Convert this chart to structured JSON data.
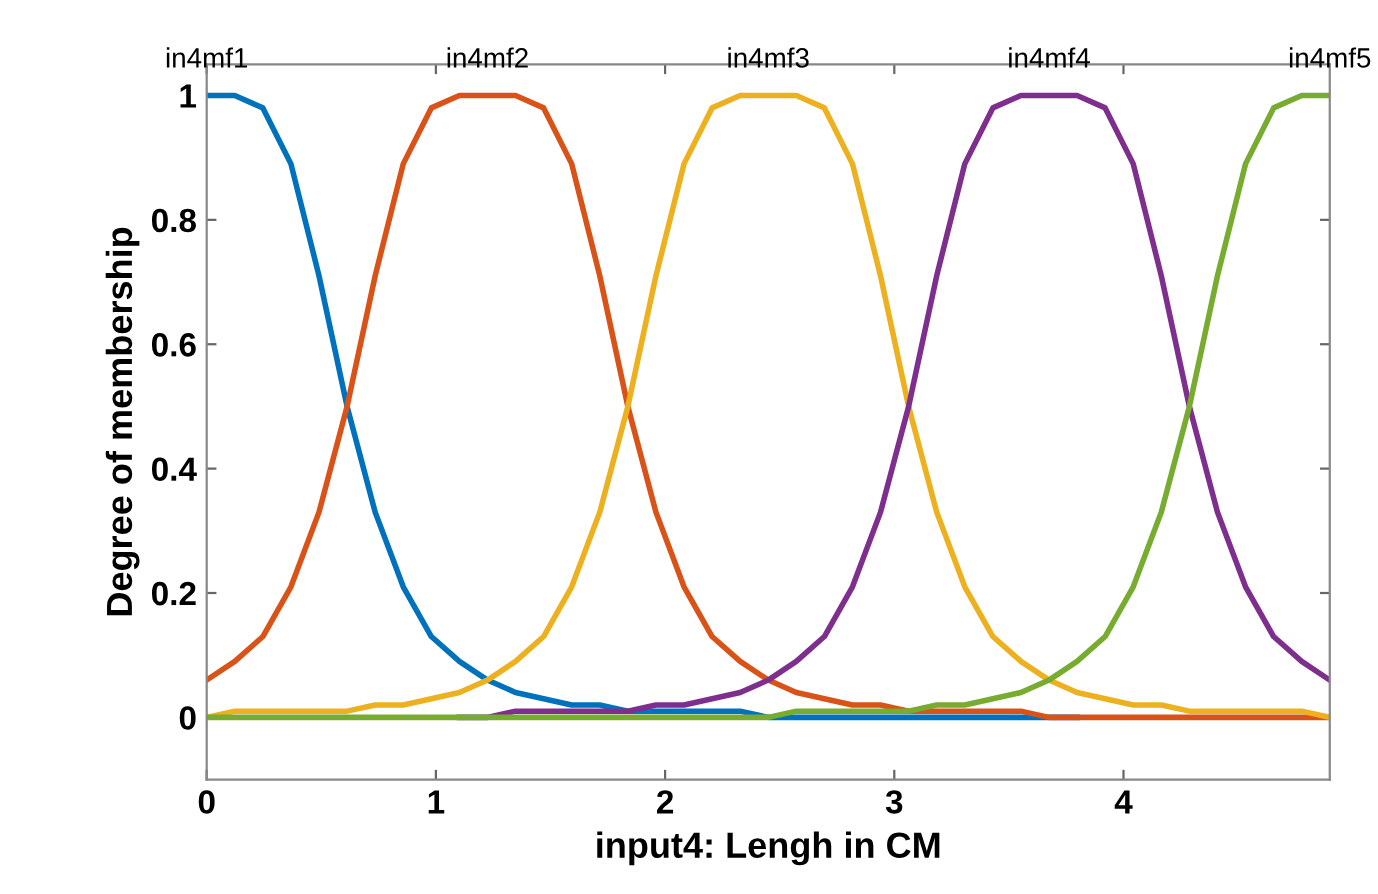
{
  "chart_data": {
    "type": "line",
    "xlabel": "input4: Lengh in CM",
    "ylabel": "Degree of membership",
    "x": [
      0,
      0.1225,
      0.245,
      0.3675,
      0.49,
      0.6125,
      0.735,
      0.8575,
      0.98,
      1.1025,
      1.225,
      1.3475,
      1.47,
      1.5925,
      1.715,
      1.8375,
      1.96,
      2.0825,
      2.205,
      2.3275,
      2.45,
      2.5725,
      2.695,
      2.8175,
      2.94,
      3.0625,
      3.185,
      3.3075,
      3.43,
      3.5525,
      3.675,
      3.7975,
      3.92,
      4.0425,
      4.165,
      4.2875,
      4.41,
      4.5325,
      4.655,
      4.7775,
      4.9
    ],
    "series": [
      {
        "color": "#0072bd",
        "values": [
          1,
          1,
          0.98,
          0.89,
          0.71,
          0.5,
          0.33,
          0.21,
          0.13,
          0.09,
          0.06,
          0.04,
          0.03,
          0.02,
          0.02,
          0.01,
          0.01,
          0.01,
          0.01,
          0.01,
          0,
          0,
          0,
          0,
          0,
          0,
          0,
          0,
          0,
          0,
          0,
          0,
          null,
          null,
          null,
          null,
          null,
          null,
          null,
          null,
          null
        ]
      },
      {
        "color": "#d95319",
        "values": [
          0.06,
          0.09,
          0.13,
          0.21,
          0.33,
          0.5,
          0.71,
          0.89,
          0.98,
          1,
          1,
          1,
          0.98,
          0.89,
          0.71,
          0.5,
          0.33,
          0.21,
          0.13,
          0.09,
          0.06,
          0.04,
          0.03,
          0.02,
          0.02,
          0.01,
          0.01,
          0.01,
          0.01,
          0.01,
          0,
          0,
          0,
          0,
          0,
          0,
          0,
          0,
          0,
          0,
          0
        ]
      },
      {
        "color": "#edb120",
        "values": [
          0,
          0.01,
          0.01,
          0.01,
          0.01,
          0.01,
          0.02,
          0.02,
          0.03,
          0.04,
          0.06,
          0.09,
          0.13,
          0.21,
          0.33,
          0.5,
          0.71,
          0.89,
          0.98,
          1,
          1,
          1,
          0.98,
          0.89,
          0.71,
          0.5,
          0.33,
          0.21,
          0.13,
          0.09,
          0.06,
          0.04,
          0.03,
          0.02,
          0.02,
          0.01,
          0.01,
          0.01,
          0.01,
          0.01,
          0
        ]
      },
      {
        "color": "#7e2f8e",
        "values": [
          null,
          null,
          null,
          null,
          null,
          null,
          null,
          null,
          null,
          0,
          0,
          0.01,
          0.01,
          0.01,
          0.01,
          0.01,
          0.02,
          0.02,
          0.03,
          0.04,
          0.06,
          0.09,
          0.13,
          0.21,
          0.33,
          0.5,
          0.71,
          0.89,
          0.98,
          1,
          1,
          1,
          0.98,
          0.89,
          0.71,
          0.5,
          0.33,
          0.21,
          0.13,
          0.09,
          0.06
        ]
      },
      {
        "color": "#77ac30",
        "values": [
          0,
          0,
          0,
          0,
          0,
          0,
          0,
          0,
          0,
          0,
          0,
          0,
          0,
          0,
          0,
          0,
          0,
          0,
          0,
          0,
          0,
          0.01,
          0.01,
          0.01,
          0.01,
          0.01,
          0.02,
          0.02,
          0.03,
          0.04,
          0.06,
          0.09,
          0.13,
          0.21,
          0.33,
          0.5,
          0.71,
          0.89,
          0.98,
          1,
          1
        ]
      }
    ],
    "annotations": [
      {
        "text": "in4mf1",
        "x": 0,
        "y": 1
      },
      {
        "text": "in4mf2",
        "x": 1.225,
        "y": 1
      },
      {
        "text": "in4mf3",
        "x": 2.45,
        "y": 1
      },
      {
        "text": "in4mf4",
        "x": 3.675,
        "y": 1
      },
      {
        "text": "in4mf5",
        "x": 4.9,
        "y": 1
      }
    ],
    "xlim": [
      0,
      4.9
    ],
    "ylim": [
      -0.1,
      1.05
    ],
    "xticks": [
      0,
      1,
      2,
      3,
      4
    ],
    "yticks": [
      0,
      0.2,
      0.4,
      0.6,
      0.8,
      1
    ],
    "grid": false,
    "marker": "none",
    "line_style": "solid"
  }
}
